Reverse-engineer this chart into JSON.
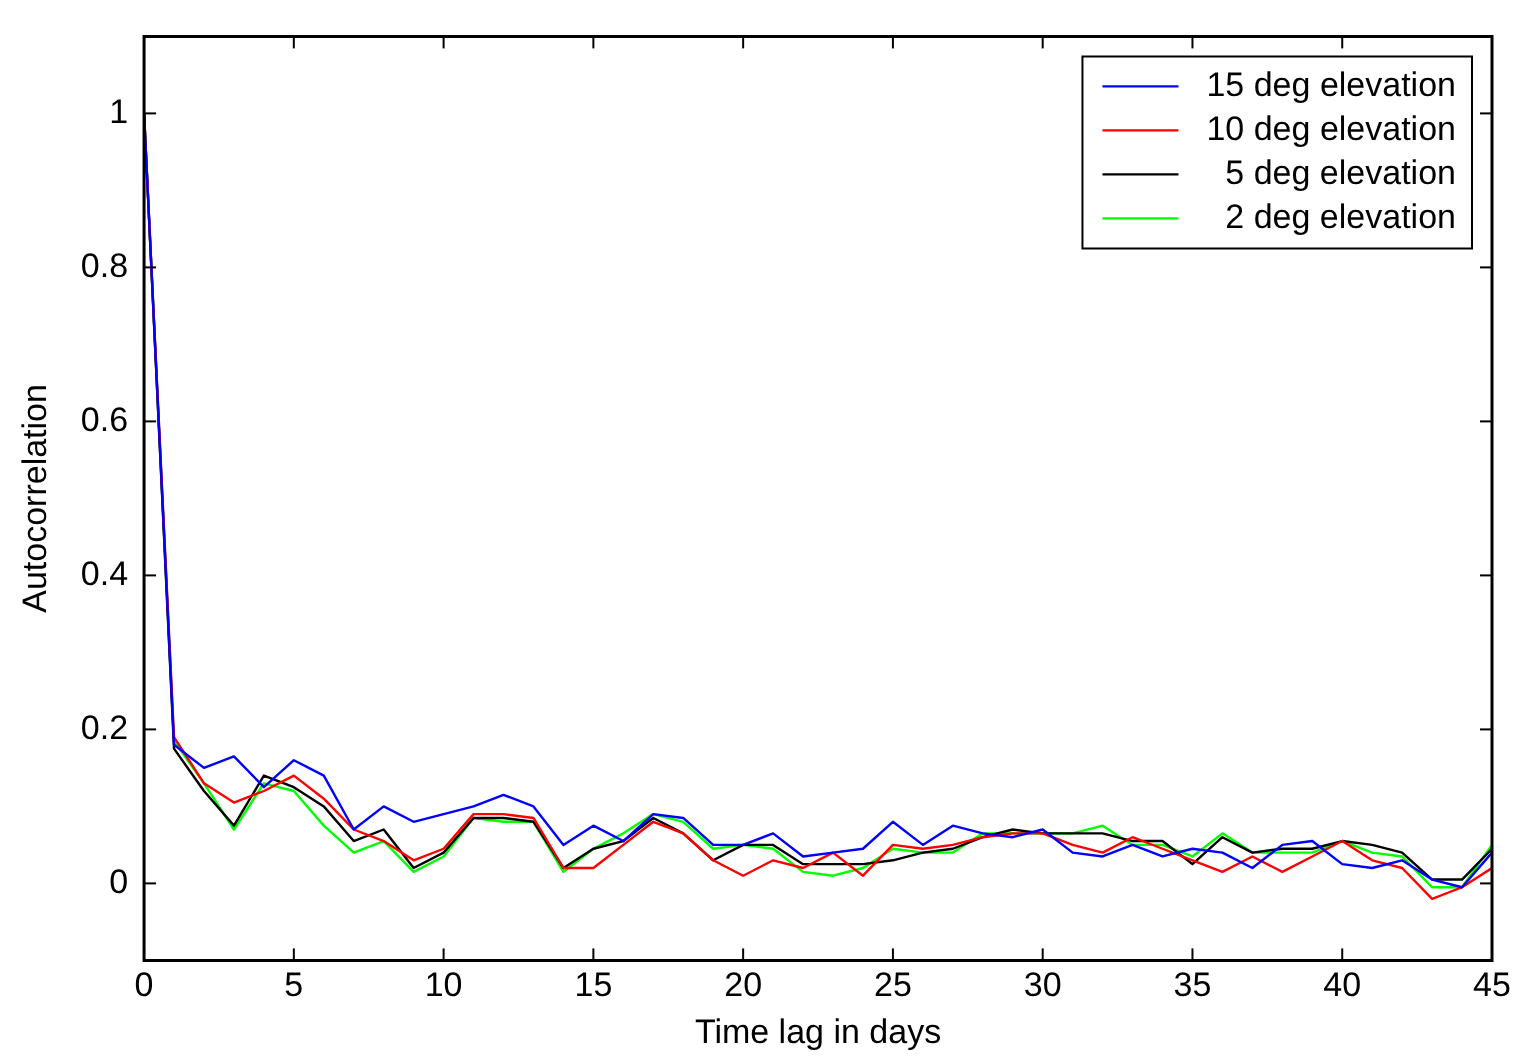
{
  "chart_data": {
    "type": "line",
    "xlabel": "Time lag in days",
    "ylabel": "Autocorrelation",
    "x": [
      0,
      1,
      2,
      3,
      4,
      5,
      6,
      7,
      8,
      9,
      10,
      11,
      12,
      13,
      14,
      15,
      16,
      17,
      18,
      19,
      20,
      21,
      22,
      23,
      24,
      25,
      26,
      27,
      28,
      29,
      30,
      31,
      32,
      33,
      34,
      35,
      36,
      37,
      38,
      39,
      40,
      41,
      42,
      43,
      44,
      45
    ],
    "series": [
      {
        "name": "15 deg elevation",
        "color": "#0000ff",
        "values": [
          1,
          0.18,
          0.15,
          0.165,
          0.125,
          0.16,
          0.14,
          0.07,
          0.1,
          0.08,
          0.09,
          0.1,
          0.115,
          0.1,
          0.05,
          0.075,
          0.055,
          0.09,
          0.085,
          0.05,
          0.05,
          0.065,
          0.035,
          0.04,
          0.045,
          0.08,
          0.05,
          0.075,
          0.065,
          0.06,
          0.07,
          0.04,
          0.035,
          0.05,
          0.035,
          0.045,
          0.04,
          0.02,
          0.05,
          0.055,
          0.025,
          0.02,
          0.03,
          0.005,
          -0.005,
          0.04
        ]
      },
      {
        "name": "10 deg elevation",
        "color": "#ff0000",
        "values": [
          1,
          0.19,
          0.13,
          0.105,
          0.12,
          0.14,
          0.11,
          0.07,
          0.055,
          0.03,
          0.045,
          0.09,
          0.09,
          0.085,
          0.02,
          0.02,
          0.05,
          0.08,
          0.065,
          0.03,
          0.01,
          0.03,
          0.02,
          0.04,
          0.01,
          0.05,
          0.045,
          0.05,
          0.06,
          0.065,
          0.065,
          0.05,
          0.04,
          0.06,
          0.045,
          0.03,
          0.015,
          0.035,
          0.015,
          0.035,
          0.055,
          0.03,
          0.02,
          -0.02,
          -0.005,
          0.02
        ]
      },
      {
        "name": "5 deg elevation",
        "color": "#000000",
        "values": [
          1,
          0.175,
          0.12,
          0.075,
          0.14,
          0.125,
          0.1,
          0.055,
          0.07,
          0.02,
          0.04,
          0.085,
          0.085,
          0.08,
          0.02,
          0.045,
          0.055,
          0.085,
          0.065,
          0.03,
          0.05,
          0.05,
          0.025,
          0.025,
          0.025,
          0.03,
          0.04,
          0.045,
          0.06,
          0.07,
          0.065,
          0.065,
          0.065,
          0.055,
          0.055,
          0.025,
          0.06,
          0.04,
          0.045,
          0.045,
          0.055,
          0.05,
          0.04,
          0.005,
          0.005,
          0.045
        ]
      },
      {
        "name": "2 deg elevation",
        "color": "#00ff00",
        "values": [
          1,
          0.185,
          0.13,
          0.07,
          0.13,
          0.12,
          0.075,
          0.04,
          0.055,
          0.015,
          0.035,
          0.085,
          0.08,
          0.08,
          0.015,
          0.045,
          0.065,
          0.09,
          0.08,
          0.045,
          0.05,
          0.045,
          0.015,
          0.01,
          0.02,
          0.045,
          0.04,
          0.04,
          0.065,
          0.065,
          0.065,
          0.065,
          0.075,
          0.05,
          0.05,
          0.035,
          0.065,
          0.04,
          0.04,
          0.04,
          0.055,
          0.04,
          0.035,
          -0.005,
          -0.005,
          0.05
        ]
      }
    ],
    "xlim": [
      0,
      45
    ],
    "xticks": [
      0,
      5,
      10,
      15,
      20,
      25,
      30,
      35,
      40,
      45
    ],
    "ylim": [
      -0.1,
      1.1
    ],
    "yticks": [
      0,
      0.2,
      0.4,
      0.6,
      0.8,
      1
    ],
    "grid": false,
    "legend": "top right",
    "marker": "none",
    "line_style": "solid"
  }
}
